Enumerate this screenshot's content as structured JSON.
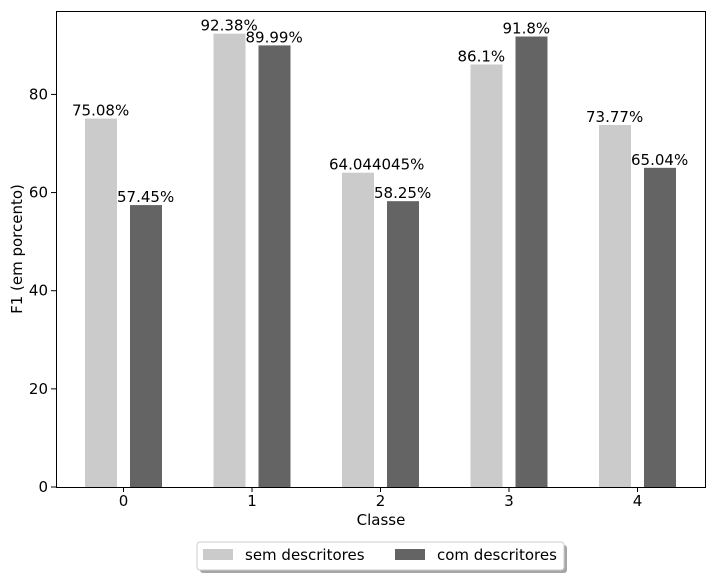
{
  "chart_data": {
    "type": "bar",
    "title": "",
    "xlabel": "Classe",
    "ylabel": "F1 (em porcento)",
    "categories": [
      "0",
      "1",
      "2",
      "3",
      "4"
    ],
    "ylim": [
      0,
      97
    ],
    "yticks": [
      0,
      20,
      40,
      60,
      80
    ],
    "grid": false,
    "legend_position": "bottom-center",
    "series": [
      {
        "name": "sem descritores",
        "color": "#cbcbcb",
        "values": [
          75.08,
          92.38,
          64.044045,
          86.1,
          73.77
        ],
        "labels": [
          "75.08%",
          "92.38%",
          "64.044045%",
          "86.1%",
          "73.77%"
        ]
      },
      {
        "name": "com descritores",
        "color": "#646464",
        "values": [
          57.45,
          89.99,
          58.25,
          91.8,
          65.04
        ],
        "labels": [
          "57.45%",
          "89.99%",
          "58.25%",
          "91.8%",
          "65.04%"
        ]
      }
    ]
  }
}
